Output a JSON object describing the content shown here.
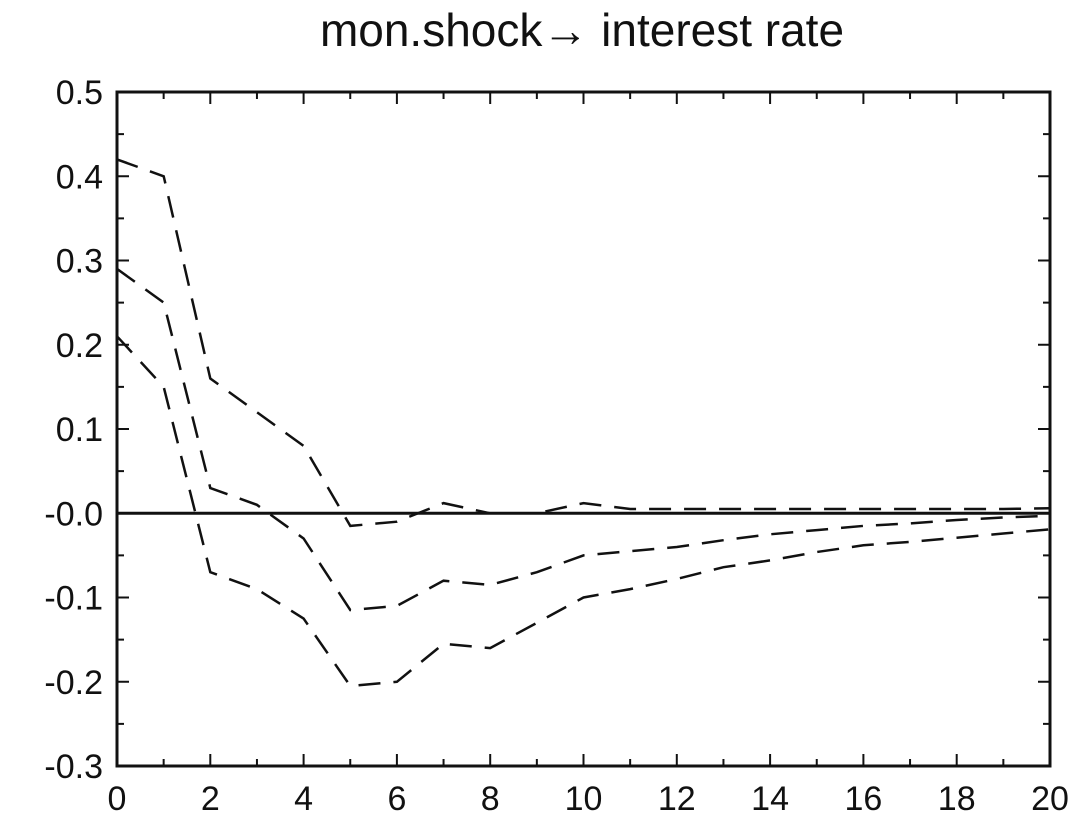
{
  "chart_data": {
    "type": "line",
    "title": "mon.shock→ interest rate",
    "xlabel": "",
    "ylabel": "",
    "xlim": [
      0,
      20
    ],
    "ylim": [
      -0.3,
      0.5
    ],
    "x_ticks": [
      0,
      2,
      4,
      6,
      8,
      10,
      12,
      14,
      16,
      18,
      20
    ],
    "x_tick_labels": [
      "0",
      "2",
      "4",
      "6",
      "8",
      "10",
      "12",
      "14",
      "16",
      "18",
      "20"
    ],
    "y_ticks": [
      0.5,
      0.4,
      0.3,
      0.2,
      0.1,
      0.0,
      -0.1,
      -0.2,
      -0.3
    ],
    "y_tick_labels": [
      "0.5",
      "0.4",
      "0.3",
      "0.2",
      "0.1",
      "-0.0",
      "-0.1",
      "-0.2",
      "-0.3"
    ],
    "zero_line": true,
    "grid": false,
    "line_style": "dashed",
    "line_color": "#111111",
    "series": [
      {
        "x": [
          0,
          1,
          2,
          3,
          4,
          5,
          6,
          7,
          8,
          9,
          10,
          11,
          12,
          13,
          14,
          15,
          16,
          17,
          18,
          19,
          20
        ],
        "values": [
          0.42,
          0.4,
          0.16,
          0.12,
          0.08,
          -0.015,
          -0.01,
          0.012,
          0.0,
          0.0,
          0.012,
          0.005,
          0.005,
          0.005,
          0.005,
          0.005,
          0.005,
          0.005,
          0.005,
          0.005,
          0.006
        ]
      },
      {
        "x": [
          0,
          1,
          2,
          3,
          4,
          5,
          6,
          7,
          8,
          9,
          10,
          11,
          12,
          13,
          14,
          15,
          16,
          17,
          18,
          19,
          20
        ],
        "values": [
          0.29,
          0.25,
          0.03,
          0.01,
          -0.03,
          -0.115,
          -0.11,
          -0.08,
          -0.085,
          -0.07,
          -0.05,
          -0.045,
          -0.04,
          -0.032,
          -0.025,
          -0.02,
          -0.015,
          -0.012,
          -0.008,
          -0.005,
          -0.003
        ]
      },
      {
        "x": [
          0,
          1,
          2,
          3,
          4,
          5,
          6,
          7,
          8,
          9,
          10,
          11,
          12,
          13,
          14,
          15,
          16,
          17,
          18,
          19,
          20
        ],
        "values": [
          0.21,
          0.15,
          -0.07,
          -0.09,
          -0.125,
          -0.205,
          -0.2,
          -0.155,
          -0.16,
          -0.13,
          -0.1,
          -0.09,
          -0.078,
          -0.064,
          -0.056,
          -0.046,
          -0.038,
          -0.034,
          -0.029,
          -0.024,
          -0.019
        ]
      }
    ]
  }
}
